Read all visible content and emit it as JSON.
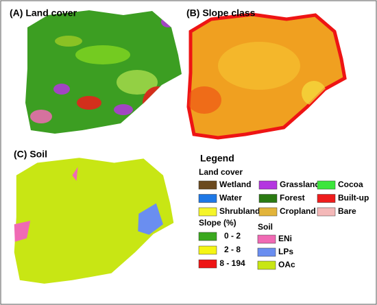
{
  "panels": [
    {
      "label": "(A) Land cover"
    },
    {
      "label": "(B) Slope class"
    },
    {
      "label": "(C) Soil"
    }
  ],
  "legend": {
    "title": "Legend",
    "land_cover": {
      "title": "Land cover",
      "items": [
        {
          "label": "Wetland",
          "color": "#6b4a1f"
        },
        {
          "label": "Grassland",
          "color": "#b436e0"
        },
        {
          "label": "Cocoa",
          "color": "#3ce63c"
        },
        {
          "label": "Water",
          "color": "#1e78e6"
        },
        {
          "label": "Forest",
          "color": "#2a7a12"
        },
        {
          "label": "Built-up",
          "color": "#ee1c1c"
        },
        {
          "label": "Shrubland",
          "color": "#f5f52a"
        },
        {
          "label": "Cropland",
          "color": "#e2b43a"
        },
        {
          "label": "Bare",
          "color": "#f4b8b8"
        }
      ]
    },
    "slope": {
      "title": "Slope (%)",
      "items": [
        {
          "label": "0 - 2",
          "color": "#3aa81e"
        },
        {
          "label": "2 - 8",
          "color": "#f5f514"
        },
        {
          "label": "8 - 194",
          "color": "#ee1414"
        }
      ]
    },
    "soil": {
      "title": "Soil",
      "items": [
        {
          "label": "ENi",
          "color": "#f06ab4"
        },
        {
          "label": "LPs",
          "color": "#6a8ef0"
        },
        {
          "label": "OAc",
          "color": "#c8e614"
        }
      ]
    }
  }
}
